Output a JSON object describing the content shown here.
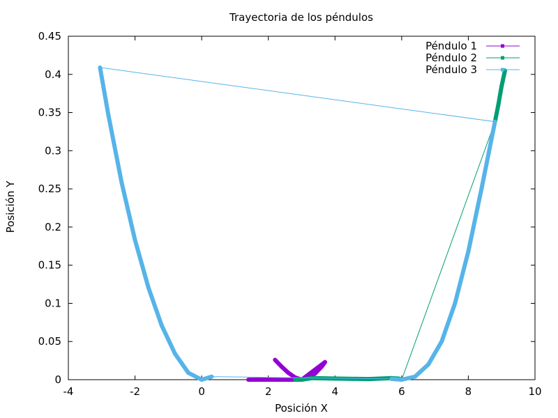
{
  "chart_data": {
    "type": "line",
    "title": "Trayectoria de los péndulos",
    "xlabel": "Posición X",
    "ylabel": "Posición Y",
    "xlim": [
      -4,
      10
    ],
    "ylim": [
      0,
      0.45
    ],
    "xticks": [
      "-4",
      "-2",
      "0",
      "2",
      "4",
      "6",
      "8",
      "10"
    ],
    "yticks": [
      "0",
      "0.05",
      "0.1",
      "0.15",
      "0.2",
      "0.25",
      "0.3",
      "0.35",
      "0.4",
      "0.45"
    ],
    "grid": false,
    "legend_position": "top-right",
    "series": [
      {
        "name": "Péndulo 1",
        "color": "#9400d3",
        "marker": "point",
        "points": [
          [
            2.2,
            0.026
          ],
          [
            2.4,
            0.017
          ],
          [
            2.6,
            0.009
          ],
          [
            2.8,
            0.003
          ],
          [
            3.0,
            0.0
          ],
          [
            3.2,
            0.002
          ],
          [
            3.4,
            0.008
          ],
          [
            3.6,
            0.017
          ],
          [
            3.7,
            0.023
          ],
          [
            3.0,
            0.0
          ],
          [
            2.0,
            0.0
          ],
          [
            1.4,
            0.0
          ]
        ]
      },
      {
        "name": "Péndulo 2",
        "color": "#009e73",
        "marker": "point",
        "points": [
          [
            2.8,
            0.0
          ],
          [
            3.0,
            0.0
          ],
          [
            3.3,
            0.002
          ],
          [
            4.0,
            0.0015
          ],
          [
            5.0,
            0.0008
          ],
          [
            5.7,
            0.002
          ],
          [
            5.9,
            0.0015
          ],
          [
            6.0,
            0.0
          ],
          [
            8.8,
            0.338
          ],
          [
            8.9,
            0.36
          ],
          [
            9.0,
            0.385
          ],
          [
            9.1,
            0.405
          ]
        ]
      },
      {
        "name": "Péndulo 3",
        "color": "#56b4e9",
        "marker": "point",
        "points": [
          [
            -3.05,
            0.409
          ],
          [
            -2.8,
            0.347
          ],
          [
            -2.4,
            0.258
          ],
          [
            -2.0,
            0.183
          ],
          [
            -1.6,
            0.121
          ],
          [
            -1.2,
            0.071
          ],
          [
            -0.8,
            0.034
          ],
          [
            -0.4,
            0.009
          ],
          [
            0.0,
            0.0
          ],
          [
            0.3,
            0.004
          ],
          [
            5.7,
            0.001
          ],
          [
            6.0,
            0.0
          ],
          [
            6.4,
            0.004
          ],
          [
            6.8,
            0.02
          ],
          [
            7.2,
            0.05
          ],
          [
            7.6,
            0.1
          ],
          [
            8.0,
            0.168
          ],
          [
            8.4,
            0.251
          ],
          [
            8.8,
            0.338
          ],
          [
            -3.05,
            0.409
          ]
        ]
      }
    ]
  }
}
